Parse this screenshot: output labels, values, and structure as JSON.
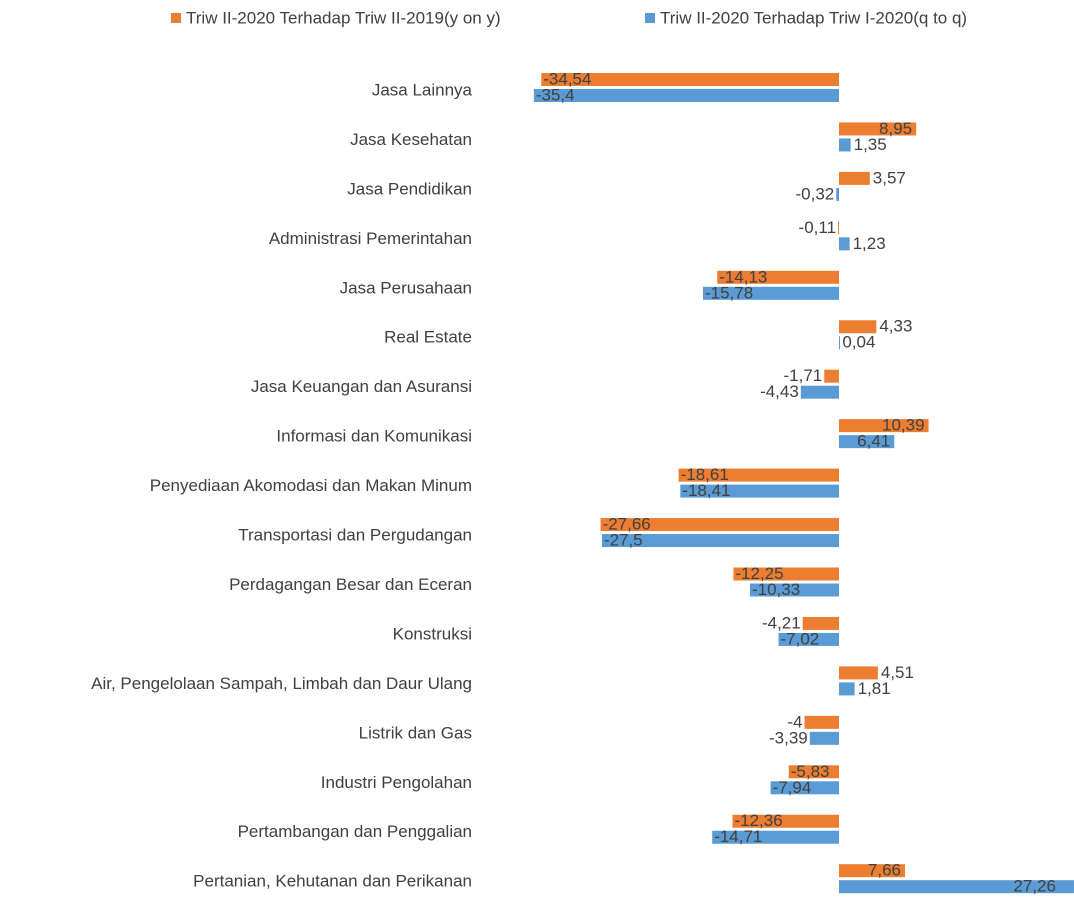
{
  "chart_data": {
    "type": "bar",
    "orientation": "horizontal",
    "categories": [
      "Jasa Lainnya",
      "Jasa Kesehatan",
      "Jasa Pendidikan",
      "Administrasi  Pemerintahan",
      "Jasa Perusahaan",
      "Real Estate",
      "Jasa Keuangan dan Asuransi",
      "Informasi  dan Komunikasi",
      "Penyediaan  Akomodasi  dan Makan Minum",
      "Transportasi dan Pergudangan",
      "Perdagangan  Besar dan Eceran",
      "Konstruksi",
      "Air, Pengelolaan  Sampah, Limbah dan Daur Ulang",
      "Listrik dan  Gas",
      "Industri Pengolahan",
      "Pertambangan  dan Penggalian",
      "Pertanian,  Kehutanan dan Perikanan"
    ],
    "series": [
      {
        "name": "Triw II-2020  Terhadap  Triw II-2019(y on y)",
        "color": "#ed7d31",
        "values": [
          -34.54,
          8.95,
          3.57,
          -0.11,
          -14.13,
          4.33,
          -1.71,
          10.39,
          -18.61,
          -27.66,
          -12.25,
          -4.21,
          4.51,
          -4,
          -5.83,
          -12.36,
          7.66
        ],
        "value_labels": [
          "-34,54",
          "8,95",
          "3,57",
          "-0,11",
          "-14,13",
          "4,33",
          "-1,71",
          "10,39",
          "-18,61",
          "-27,66",
          "-12,25",
          "-4,21",
          "4,51",
          "-4",
          "-5,83",
          "-12,36",
          "7,66"
        ]
      },
      {
        "name": "Triw II-2020  Terhadap  Triw I-2020(q  to q)",
        "color": "#5b9bd5",
        "values": [
          -35.4,
          1.35,
          -0.32,
          1.23,
          -15.78,
          0.04,
          -4.43,
          6.41,
          -18.41,
          -27.5,
          -10.33,
          -7.02,
          1.81,
          -3.39,
          -7.94,
          -14.71,
          27.26
        ],
        "value_labels": [
          "-35,4",
          "1,35",
          "-0,32",
          "1,23",
          "-15,78",
          "0,04",
          "-4,43",
          "6,41",
          "-18,41",
          "-27,5",
          "-10,33",
          "-7,02",
          "1,81",
          "-3,39",
          "-7,94",
          "-14,71",
          "27,26"
        ]
      }
    ],
    "legend": "top"
  }
}
